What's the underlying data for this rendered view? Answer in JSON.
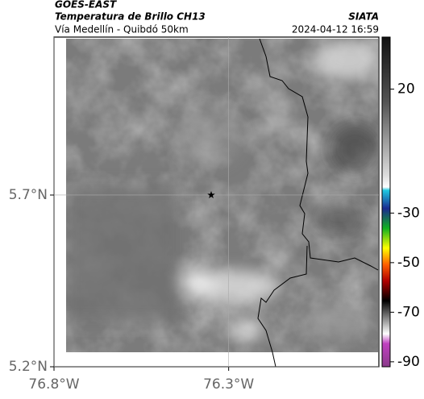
{
  "header": {
    "left_title": "GOES-EAST",
    "left_subtitle": "Temperatura de Brillo CH13",
    "left_caption": "Vía Medellín - Quibdó 50km",
    "right_title": "SIATA",
    "right_caption": "2024-04-12 16:59"
  },
  "map": {
    "xlim": [
      -76.8,
      -75.87
    ],
    "ylim": [
      5.2,
      6.16
    ],
    "xticks": [
      {
        "value": -76.8,
        "label": "76.8°W"
      },
      {
        "value": -76.3,
        "label": "76.3°W"
      }
    ],
    "yticks": [
      {
        "value": 5.7,
        "label": "5.7°N"
      },
      {
        "value": 5.2,
        "label": "5.2°N"
      }
    ],
    "grid": true,
    "marker": {
      "lon": -76.35,
      "lat": 5.7
    }
  },
  "colorbar": {
    "lim": [
      -92,
      41
    ],
    "ticks": [
      20,
      -30,
      -50,
      -70,
      -90
    ]
  }
}
